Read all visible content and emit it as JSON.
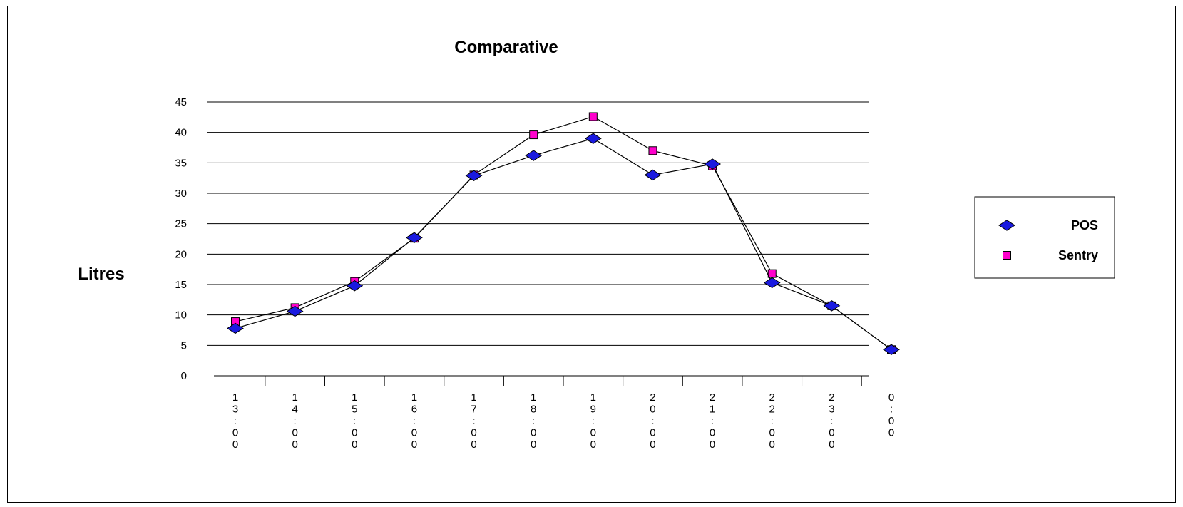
{
  "chart_data": {
    "type": "line",
    "title": "Comparative",
    "ylabel": "Litres",
    "xlabel": "",
    "ylim": [
      0,
      45
    ],
    "yticks": [
      0,
      5,
      10,
      15,
      20,
      25,
      30,
      35,
      40,
      45
    ],
    "grid": true,
    "legend": "right",
    "categories": [
      "13:00",
      "14:00",
      "15:00",
      "16:00",
      "17:00",
      "18:00",
      "19:00",
      "20:00",
      "21:00",
      "22:00",
      "23:00",
      "0:00"
    ],
    "series": [
      {
        "name": "POS",
        "marker": "diamond",
        "color": "#1a1ae0",
        "values": [
          7.8,
          10.6,
          14.8,
          22.7,
          32.9,
          36.2,
          39.0,
          33.0,
          34.8,
          15.3,
          11.5,
          4.3
        ]
      },
      {
        "name": "Sentry",
        "marker": "square",
        "color": "#ff00cc",
        "values": [
          8.9,
          11.2,
          15.5,
          22.6,
          33.0,
          39.6,
          42.6,
          37.0,
          34.5,
          16.8,
          11.5,
          4.3
        ]
      }
    ]
  }
}
